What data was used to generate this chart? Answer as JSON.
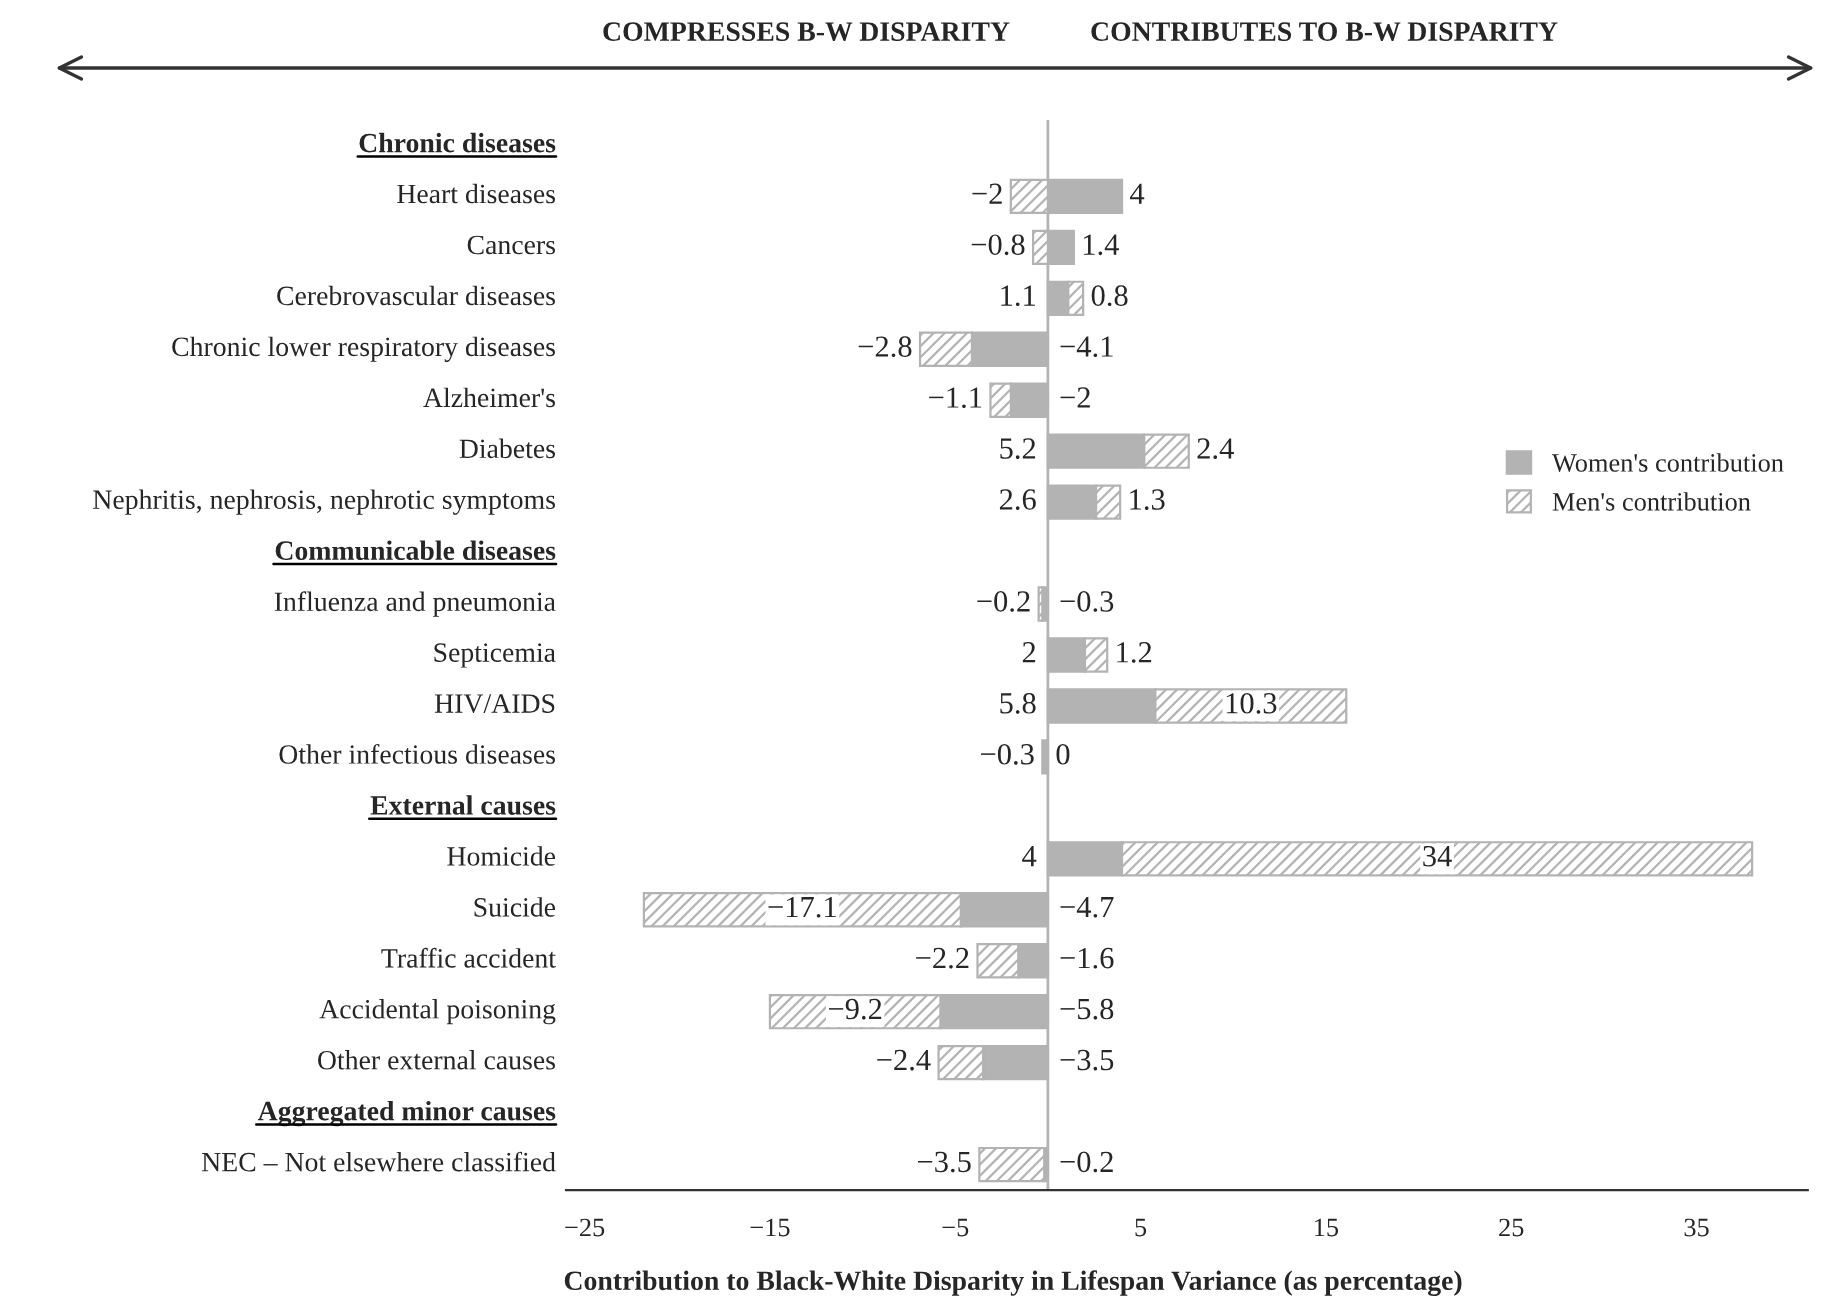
{
  "chart_data": {
    "type": "bar",
    "orientation": "horizontal",
    "stacked": true,
    "xlabel": "Contribution to Black-White Disparity in Lifespan Variance (as percentage)",
    "categories": [
      "Chronic diseases",
      "Heart diseases",
      "Cancers",
      "Cerebrovascular diseases",
      "Chronic lower respiratory diseases",
      "Alzheimer's",
      "Diabetes",
      "Nephritis, nephrosis, nephrotic symptoms",
      "Communicable diseases",
      "Influenza and pneumonia",
      "Septicemia",
      "HIV/AIDS",
      "Other infectious diseases",
      "External causes",
      "Homicide",
      "Suicide",
      "Traffic accident",
      "Accidental poisoning",
      "Other external causes",
      "Aggregated minor causes",
      "NEC – Not elsewhere classified"
    ],
    "series": [
      {
        "name": "Women's contribution",
        "color": "#b3b3b3",
        "values": [
          null,
          4,
          1.4,
          1.1,
          -4.1,
          -2,
          5.2,
          2.6,
          null,
          -0.3,
          2,
          5.8,
          -0.3,
          null,
          4,
          -4.7,
          -1.6,
          -5.8,
          -3.5,
          null,
          -0.2
        ]
      },
      {
        "name": "Men's contribution",
        "color": "#b3b3b3",
        "values": [
          null,
          -2,
          -0.8,
          0.8,
          -2.8,
          -1.1,
          2.4,
          1.3,
          null,
          -0.2,
          1.2,
          10.3,
          0,
          null,
          34,
          -17.1,
          -2.2,
          -9.2,
          -2.4,
          null,
          -3.5
        ]
      }
    ],
    "xlim": [
      -26,
      41
    ],
    "xticks": [
      -25,
      -15,
      -5,
      5,
      15,
      25,
      35
    ],
    "ref_lines": [
      {
        "axis": "x",
        "value": 0,
        "color": "#b3b3b3"
      }
    ],
    "annotations": [
      "COMPRESSES B-W DISPARITY",
      "CONTRIBUTES TO B-W DISPARITY"
    ],
    "data_labels": true,
    "legend": "right",
    "grid": false
  }
}
